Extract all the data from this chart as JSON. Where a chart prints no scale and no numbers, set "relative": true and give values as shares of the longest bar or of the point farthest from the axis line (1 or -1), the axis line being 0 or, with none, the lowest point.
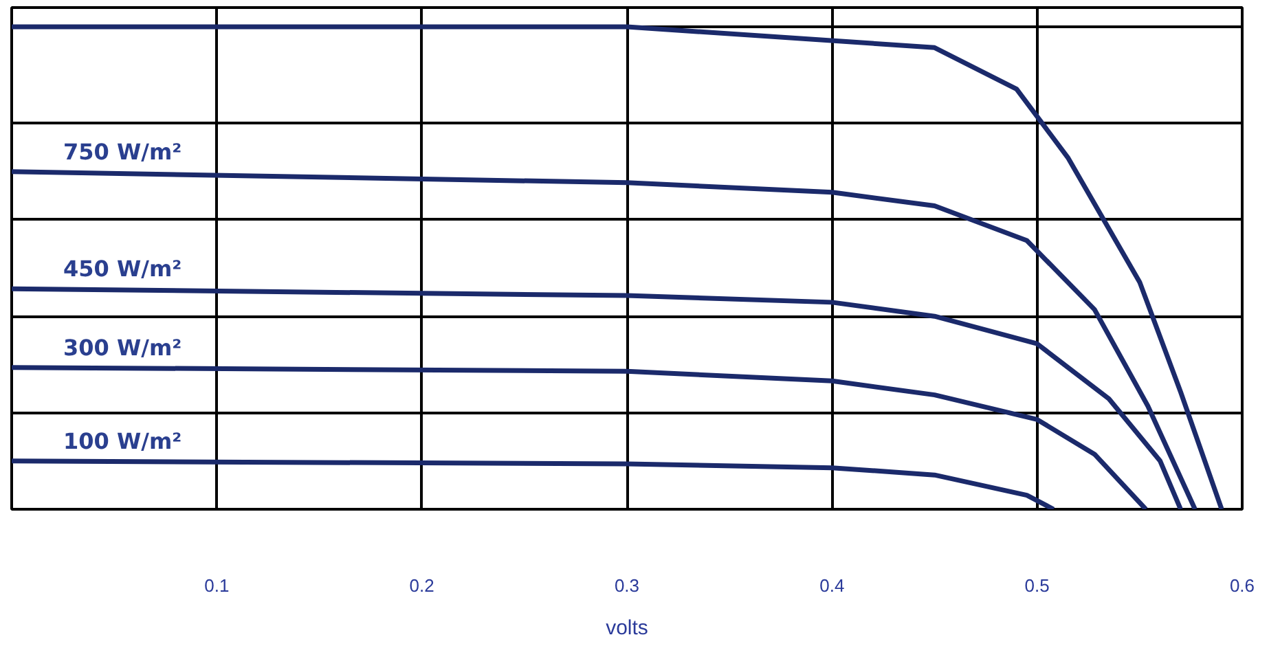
{
  "chart_data": {
    "type": "line",
    "xlabel": "volts",
    "relative": true,
    "xlim": [
      0,
      0.6
    ],
    "xticks": [
      0.1,
      0.2,
      0.3,
      0.4,
      0.5,
      0.6
    ],
    "grid": true,
    "line_style": "solid",
    "series": [
      {
        "color": "#1b2a6b",
        "x": [
          0,
          0.3,
          0.45,
          0.49,
          0.515,
          0.55,
          0.57,
          0.59
        ],
        "values": [
          1.0,
          1.0,
          0.957,
          0.871,
          0.729,
          0.471,
          0.243,
          0
        ]
      },
      {
        "name": "750 W/m²",
        "color": "#1b2a6b",
        "x": [
          0,
          0.3,
          0.4,
          0.45,
          0.495,
          0.528,
          0.554,
          0.577
        ],
        "values": [
          0.7,
          0.677,
          0.657,
          0.629,
          0.557,
          0.414,
          0.214,
          0
        ]
      },
      {
        "name": "450 W/m²",
        "color": "#1b2a6b",
        "x": [
          0,
          0.3,
          0.4,
          0.45,
          0.5,
          0.535,
          0.56,
          0.57
        ],
        "values": [
          0.457,
          0.443,
          0.429,
          0.4,
          0.343,
          0.229,
          0.1,
          0
        ]
      },
      {
        "name": "300 W/m²",
        "color": "#1b2a6b",
        "x": [
          0,
          0.3,
          0.4,
          0.45,
          0.5,
          0.528,
          0.553
        ],
        "values": [
          0.294,
          0.286,
          0.266,
          0.237,
          0.186,
          0.114,
          0
        ]
      },
      {
        "name": "100 W/m²",
        "color": "#1b2a6b",
        "x": [
          0,
          0.3,
          0.4,
          0.45,
          0.495,
          0.508
        ],
        "values": [
          0.1,
          0.094,
          0.086,
          0.071,
          0.029,
          0
        ]
      }
    ]
  }
}
